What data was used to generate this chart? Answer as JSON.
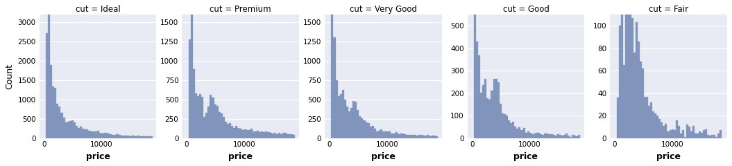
{
  "cuts": [
    "Ideal",
    "Premium",
    "Very Good",
    "Good",
    "Fair"
  ],
  "titles": [
    "cut = Ideal",
    "cut = Premium",
    "cut = Very Good",
    "cut = Good",
    "cut = Fair"
  ],
  "xlabel": "price",
  "ylabel": "Count",
  "bar_color": "#8094BC",
  "background_color": "#E8EBF3",
  "fig_background": "#FFFFFF",
  "bins": 50,
  "ylims": {
    "Ideal": [
      0,
      3200
    ],
    "Premium": [
      0,
      1600
    ],
    "Very Good": [
      0,
      1600
    ],
    "Good": [
      0,
      550
    ],
    "Fair": [
      0,
      110
    ]
  },
  "yticks": {
    "Ideal": [
      0,
      500,
      1000,
      1500,
      2000,
      2500,
      3000
    ],
    "Premium": [
      0,
      250,
      500,
      750,
      1000,
      1250,
      1500
    ],
    "Very Good": [
      0,
      250,
      500,
      750,
      1000,
      1250,
      1500
    ],
    "Good": [
      0,
      100,
      200,
      300,
      400,
      500
    ],
    "Fair": [
      0,
      20,
      40,
      60,
      80,
      100
    ]
  },
  "xticks": [
    0,
    10000
  ],
  "xtick_labels": [
    "0",
    "10000"
  ],
  "xlim": [
    -800,
    19500
  ]
}
